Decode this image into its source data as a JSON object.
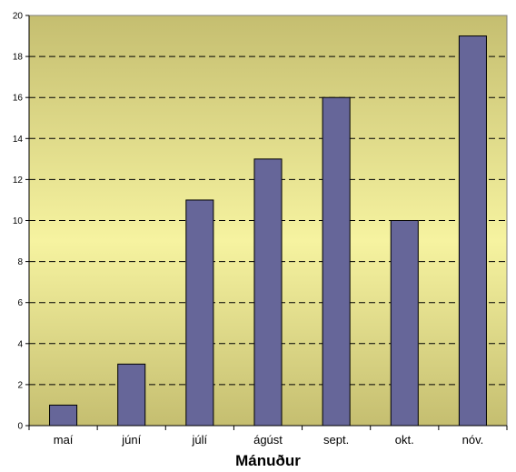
{
  "chart_data": {
    "type": "bar",
    "title": "",
    "xlabel": "Mánuður",
    "ylabel": "",
    "categories": [
      "maí",
      "júní",
      "júlí",
      "ágúst",
      "sept.",
      "okt.",
      "nóv."
    ],
    "values": [
      1,
      3,
      11,
      13,
      16,
      10,
      19
    ],
    "ylim": [
      0,
      20
    ],
    "yticks": [
      0,
      2,
      4,
      6,
      8,
      10,
      12,
      14,
      16,
      18,
      20
    ],
    "grid": true,
    "grid_style": "dashed",
    "bar_color": "#666699",
    "plot_background_top": "#c5be70",
    "plot_background_mid": "#f5f29e"
  }
}
